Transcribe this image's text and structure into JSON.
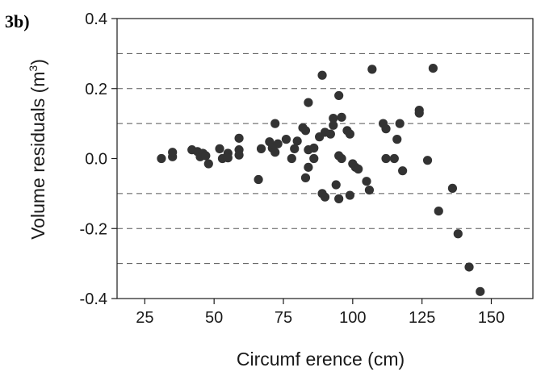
{
  "panel_label": "3b)",
  "chart_data": {
    "type": "scatter",
    "title": "",
    "xlabel": "Circumf erence (cm)",
    "ylabel": "Volume residuals (m",
    "ylabel_superscript": "3",
    "ylabel_suffix": ")",
    "xlim": [
      15,
      165
    ],
    "ylim": [
      -0.4,
      0.4
    ],
    "xticks": [
      25,
      50,
      75,
      100,
      125,
      150
    ],
    "yticks": [
      -0.4,
      -0.2,
      0.0,
      0.2,
      0.4
    ],
    "ytick_labels": [
      "-0.4",
      "-0.2",
      "0.0",
      "0.2",
      "0.4"
    ],
    "gridlines_y": [
      -0.3,
      -0.2,
      -0.1,
      0.1,
      0.2,
      0.3
    ],
    "grid": "dashed horizontal",
    "marker_color": "#333333",
    "points": [
      [
        31,
        0.0
      ],
      [
        35,
        0.005
      ],
      [
        35,
        0.018
      ],
      [
        42,
        0.025
      ],
      [
        44,
        0.02
      ],
      [
        45,
        0.005
      ],
      [
        46,
        0.015
      ],
      [
        47,
        0.008
      ],
      [
        48,
        -0.015
      ],
      [
        52,
        0.028
      ],
      [
        53,
        0.0
      ],
      [
        55,
        0.015
      ],
      [
        55,
        0.002
      ],
      [
        59,
        0.058
      ],
      [
        59,
        0.025
      ],
      [
        59,
        0.01
      ],
      [
        66,
        -0.06
      ],
      [
        67,
        0.028
      ],
      [
        70,
        0.048
      ],
      [
        71,
        0.03
      ],
      [
        72,
        0.1
      ],
      [
        72,
        0.018
      ],
      [
        73,
        0.042
      ],
      [
        76,
        0.055
      ],
      [
        78,
        0.0
      ],
      [
        79,
        0.028
      ],
      [
        80,
        0.05
      ],
      [
        82,
        0.088
      ],
      [
        83,
        0.08
      ],
      [
        83,
        -0.055
      ],
      [
        84,
        0.16
      ],
      [
        84,
        0.025
      ],
      [
        84,
        -0.025
      ],
      [
        86,
        0.0
      ],
      [
        86,
        0.03
      ],
      [
        88,
        0.062
      ],
      [
        89,
        0.238
      ],
      [
        89,
        -0.1
      ],
      [
        90,
        -0.11
      ],
      [
        90,
        0.075
      ],
      [
        92,
        0.07
      ],
      [
        93,
        0.115
      ],
      [
        93,
        0.095
      ],
      [
        94,
        -0.075
      ],
      [
        95,
        0.18
      ],
      [
        95,
        0.008
      ],
      [
        95,
        -0.115
      ],
      [
        96,
        0.118
      ],
      [
        96,
        0.0
      ],
      [
        98,
        0.08
      ],
      [
        99,
        0.07
      ],
      [
        99,
        -0.105
      ],
      [
        100,
        -0.015
      ],
      [
        101,
        -0.025
      ],
      [
        102,
        -0.03
      ],
      [
        105,
        -0.065
      ],
      [
        106,
        -0.09
      ],
      [
        107,
        0.255
      ],
      [
        111,
        0.1
      ],
      [
        112,
        0.085
      ],
      [
        112,
        0.0
      ],
      [
        115,
        0.0
      ],
      [
        116,
        0.055
      ],
      [
        117,
        0.1
      ],
      [
        118,
        -0.035
      ],
      [
        124,
        0.138
      ],
      [
        124,
        0.13
      ],
      [
        127,
        -0.005
      ],
      [
        129,
        0.258
      ],
      [
        131,
        -0.15
      ],
      [
        136,
        -0.085
      ],
      [
        138,
        -0.215
      ],
      [
        142,
        -0.31
      ],
      [
        146,
        -0.38
      ]
    ]
  }
}
